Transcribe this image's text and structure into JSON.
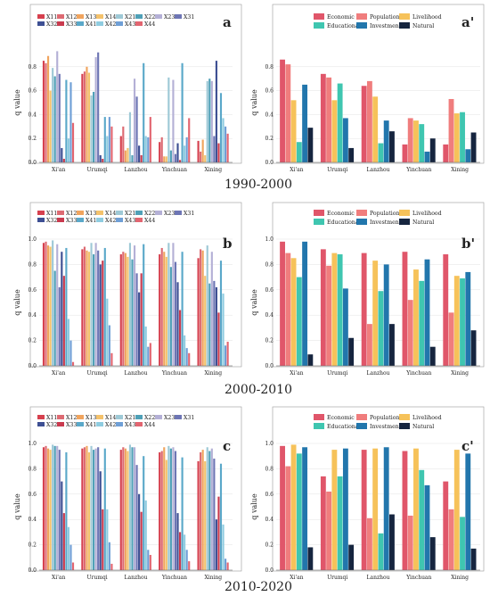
{
  "periods": [
    "1990-2000",
    "2000-2010",
    "2010-2020"
  ],
  "chart_data": [
    {
      "type": "bar",
      "panel": "a",
      "ylabel": "q value",
      "ylim": [
        0,
        1.0
      ],
      "yticks": [
        "0.0",
        "0.2",
        "0.4",
        "0.6",
        "0.8"
      ],
      "categories": [
        "Xi'an",
        "Urumqi",
        "Lanzhou",
        "Yinchuan",
        "Xining"
      ],
      "series": [
        {
          "name": "X11",
          "color": "#d6404e",
          "values": [
            0.85,
            0.74,
            0.22,
            0.17,
            0.18
          ]
        },
        {
          "name": "X12",
          "color": "#dd6a72",
          "values": [
            0.83,
            0.76,
            0.3,
            0.21,
            0.09
          ]
        },
        {
          "name": "X13",
          "color": "#f0a45e",
          "values": [
            0.89,
            0.8,
            0.1,
            0.05,
            0.19
          ]
        },
        {
          "name": "X14",
          "color": "#f4c26c",
          "values": [
            0.6,
            0.75,
            0.12,
            0.05,
            0.06
          ]
        },
        {
          "name": "X21",
          "color": "#9ec9d6",
          "values": [
            0.79,
            0.56,
            0.42,
            0.71,
            0.68
          ]
        },
        {
          "name": "X22",
          "color": "#4fa0b7",
          "values": [
            0.72,
            0.59,
            0.06,
            0.1,
            0.7
          ]
        },
        {
          "name": "X23",
          "color": "#b4b0d6",
          "values": [
            0.93,
            0.88,
            0.7,
            0.69,
            0.68
          ]
        },
        {
          "name": "X31",
          "color": "#6d75b4",
          "values": [
            0.74,
            0.92,
            0.55,
            0.07,
            0.22
          ]
        },
        {
          "name": "X32",
          "color": "#3d4f93",
          "values": [
            0.12,
            0.06,
            0.14,
            0.16,
            0.85
          ]
        },
        {
          "name": "X33",
          "color": "#c93a4e",
          "values": [
            0.03,
            0.03,
            0.06,
            0.02,
            0.16
          ]
        },
        {
          "name": "X41",
          "color": "#5aa8c9",
          "values": [
            0.69,
            0.38,
            0.83,
            0.83,
            0.58
          ]
        },
        {
          "name": "X42",
          "color": "#8fcce0",
          "values": [
            0.2,
            0.22,
            0.22,
            0.14,
            0.37
          ]
        },
        {
          "name": "X43",
          "color": "#6f9fd6",
          "values": [
            0.67,
            0.38,
            0.21,
            0.21,
            0.3
          ]
        },
        {
          "name": "X44",
          "color": "#e26570",
          "values": [
            0.33,
            0.3,
            0.38,
            0.37,
            0.24
          ]
        }
      ]
    },
    {
      "type": "bar",
      "panel": "a'",
      "ylabel": "q value",
      "ylim": [
        0,
        1.0
      ],
      "yticks": [
        "0.0",
        "0.2",
        "0.4",
        "0.6",
        "0.8"
      ],
      "categories": [
        "Xi'an",
        "Urumqi",
        "Lanzhou",
        "Yinchuan",
        "Xining"
      ],
      "series": [
        {
          "name": "Economic",
          "color": "#e0566a",
          "values": [
            0.86,
            0.74,
            0.64,
            0.15,
            0.15
          ]
        },
        {
          "name": "Population",
          "color": "#f07d7d",
          "values": [
            0.82,
            0.71,
            0.68,
            0.37,
            0.53
          ]
        },
        {
          "name": "Livelihood",
          "color": "#f6c25a",
          "values": [
            0.52,
            0.52,
            0.55,
            0.35,
            0.41
          ]
        },
        {
          "name": "Educational",
          "color": "#3fc6b0",
          "values": [
            0.17,
            0.66,
            0.16,
            0.32,
            0.42
          ]
        },
        {
          "name": "Investment",
          "color": "#2276ac",
          "values": [
            0.65,
            0.37,
            0.35,
            0.09,
            0.11
          ]
        },
        {
          "name": "Natural",
          "color": "#16253f",
          "values": [
            0.29,
            0.12,
            0.26,
            0.2,
            0.25
          ]
        }
      ]
    },
    {
      "type": "bar",
      "panel": "b",
      "ylabel": "q value",
      "ylim": [
        0,
        1.0
      ],
      "yticks": [
        "0.0",
        "0.2",
        "0.4",
        "0.6",
        "0.8",
        "1.0"
      ],
      "categories": [
        "Xi'an",
        "Urumqi",
        "Lanzhou",
        "Yinchuan",
        "Xining"
      ],
      "series": [
        {
          "name": "X11",
          "color": "#d6404e",
          "values": [
            0.97,
            0.92,
            0.88,
            0.88,
            0.85
          ]
        },
        {
          "name": "X12",
          "color": "#dd6a72",
          "values": [
            0.98,
            0.94,
            0.9,
            0.93,
            0.92
          ]
        },
        {
          "name": "X13",
          "color": "#f0a45e",
          "values": [
            0.95,
            0.91,
            0.89,
            0.9,
            0.91
          ]
        },
        {
          "name": "X14",
          "color": "#f4c26c",
          "values": [
            0.94,
            0.9,
            0.86,
            0.86,
            0.71
          ]
        },
        {
          "name": "X21",
          "color": "#9ec9d6",
          "values": [
            0.99,
            0.97,
            0.97,
            0.97,
            0.95
          ]
        },
        {
          "name": "X22",
          "color": "#4fa0b7",
          "values": [
            0.75,
            0.88,
            0.84,
            0.78,
            0.65
          ]
        },
        {
          "name": "X23",
          "color": "#b4b0d6",
          "values": [
            0.96,
            0.97,
            0.95,
            0.97,
            0.9
          ]
        },
        {
          "name": "X31",
          "color": "#6d75b4",
          "values": [
            0.62,
            0.91,
            0.73,
            0.82,
            0.67
          ]
        },
        {
          "name": "X32",
          "color": "#3d4f93",
          "values": [
            0.9,
            0.8,
            0.58,
            0.66,
            0.62
          ]
        },
        {
          "name": "X33",
          "color": "#c93a4e",
          "values": [
            0.71,
            0.83,
            0.73,
            0.44,
            0.42
          ]
        },
        {
          "name": "X41",
          "color": "#5aa8c9",
          "values": [
            0.93,
            0.93,
            0.96,
            0.9,
            0.83
          ]
        },
        {
          "name": "X42",
          "color": "#8fcce0",
          "values": [
            0.37,
            0.53,
            0.31,
            0.24,
            0.57
          ]
        },
        {
          "name": "X43",
          "color": "#6f9fd6",
          "values": [
            0.2,
            0.32,
            0.15,
            0.14,
            0.16
          ]
        },
        {
          "name": "X44",
          "color": "#e26570",
          "values": [
            0.03,
            0.1,
            0.18,
            0.1,
            0.19
          ]
        }
      ]
    },
    {
      "type": "bar",
      "panel": "b'",
      "ylabel": "q value",
      "ylim": [
        0,
        1.0
      ],
      "yticks": [
        "0.0",
        "0.2",
        "0.4",
        "0.6",
        "0.8",
        "1.0"
      ],
      "categories": [
        "Xi'an",
        "Urumqi",
        "Lanzhou",
        "Yinchuan",
        "Xining"
      ],
      "series": [
        {
          "name": "Economic",
          "color": "#e0566a",
          "values": [
            0.98,
            0.92,
            0.89,
            0.9,
            0.88
          ]
        },
        {
          "name": "Population",
          "color": "#f07d7d",
          "values": [
            0.89,
            0.79,
            0.33,
            0.52,
            0.42
          ]
        },
        {
          "name": "Livelihood",
          "color": "#f6c25a",
          "values": [
            0.85,
            0.89,
            0.83,
            0.76,
            0.71
          ]
        },
        {
          "name": "Educational",
          "color": "#3fc6b0",
          "values": [
            0.7,
            0.88,
            0.59,
            0.67,
            0.69
          ]
        },
        {
          "name": "Investment",
          "color": "#2276ac",
          "values": [
            0.98,
            0.61,
            0.8,
            0.84,
            0.74
          ]
        },
        {
          "name": "Natural",
          "color": "#16253f",
          "values": [
            0.09,
            0.22,
            0.33,
            0.15,
            0.28
          ]
        }
      ]
    },
    {
      "type": "bar",
      "panel": "c",
      "ylabel": "q value",
      "ylim": [
        0,
        1.0
      ],
      "yticks": [
        "0.0",
        "0.2",
        "0.4",
        "0.6",
        "0.8",
        "1.0"
      ],
      "categories": [
        "Xi'an",
        "Urumqi",
        "Lanzhou",
        "Yinchuan",
        "Xining"
      ],
      "series": [
        {
          "name": "X11",
          "color": "#d6404e",
          "values": [
            0.97,
            0.96,
            0.95,
            0.93,
            0.86
          ]
        },
        {
          "name": "X12",
          "color": "#dd6a72",
          "values": [
            0.98,
            0.97,
            0.97,
            0.94,
            0.93
          ]
        },
        {
          "name": "X13",
          "color": "#f0a45e",
          "values": [
            0.96,
            0.98,
            0.96,
            0.97,
            0.95
          ]
        },
        {
          "name": "X14",
          "color": "#f4c26c",
          "values": [
            0.95,
            0.93,
            0.94,
            0.87,
            0.86
          ]
        },
        {
          "name": "X21",
          "color": "#9ec9d6",
          "values": [
            0.99,
            0.98,
            0.99,
            0.98,
            0.97
          ]
        },
        {
          "name": "X22",
          "color": "#4fa0b7",
          "values": [
            0.98,
            0.95,
            0.97,
            0.96,
            0.94
          ]
        },
        {
          "name": "X23",
          "color": "#b4b0d6",
          "values": [
            0.98,
            0.96,
            0.97,
            0.97,
            0.96
          ]
        },
        {
          "name": "X31",
          "color": "#6d75b4",
          "values": [
            0.95,
            0.97,
            0.83,
            0.94,
            0.88
          ]
        },
        {
          "name": "X32",
          "color": "#3d4f93",
          "values": [
            0.7,
            0.78,
            0.6,
            0.45,
            0.4
          ]
        },
        {
          "name": "X33",
          "color": "#c93a4e",
          "values": [
            0.45,
            0.48,
            0.46,
            0.3,
            0.58
          ]
        },
        {
          "name": "X41",
          "color": "#5aa8c9",
          "values": [
            0.93,
            0.96,
            0.9,
            0.89,
            0.84
          ]
        },
        {
          "name": "X42",
          "color": "#8fcce0",
          "values": [
            0.34,
            0.48,
            0.55,
            0.28,
            0.36
          ]
        },
        {
          "name": "X43",
          "color": "#6f9fd6",
          "values": [
            0.2,
            0.22,
            0.16,
            0.16,
            0.09
          ]
        },
        {
          "name": "X44",
          "color": "#e26570",
          "values": [
            0.06,
            0.05,
            0.12,
            0.07,
            0.06
          ]
        }
      ]
    },
    {
      "type": "bar",
      "panel": "c'",
      "ylabel": "q value",
      "ylim": [
        0,
        1.0
      ],
      "yticks": [
        "0.0",
        "0.2",
        "0.4",
        "0.6",
        "0.8",
        "1.0"
      ],
      "categories": [
        "Xi'an",
        "Urumqi",
        "Lanzhou",
        "Yinchuan",
        "Xining"
      ],
      "series": [
        {
          "name": "Economic",
          "color": "#e0566a",
          "values": [
            0.98,
            0.74,
            0.95,
            0.94,
            0.7
          ]
        },
        {
          "name": "Population",
          "color": "#f07d7d",
          "values": [
            0.82,
            0.62,
            0.41,
            0.43,
            0.48
          ]
        },
        {
          "name": "Livelihood",
          "color": "#f6c25a",
          "values": [
            0.99,
            0.95,
            0.96,
            0.96,
            0.95
          ]
        },
        {
          "name": "Educational",
          "color": "#3fc6b0",
          "values": [
            0.92,
            0.74,
            0.29,
            0.79,
            0.42
          ]
        },
        {
          "name": "Investment",
          "color": "#2276ac",
          "values": [
            0.97,
            0.96,
            0.97,
            0.67,
            0.92
          ]
        },
        {
          "name": "Natural",
          "color": "#16253f",
          "values": [
            0.18,
            0.2,
            0.44,
            0.26,
            0.17
          ]
        }
      ]
    }
  ]
}
